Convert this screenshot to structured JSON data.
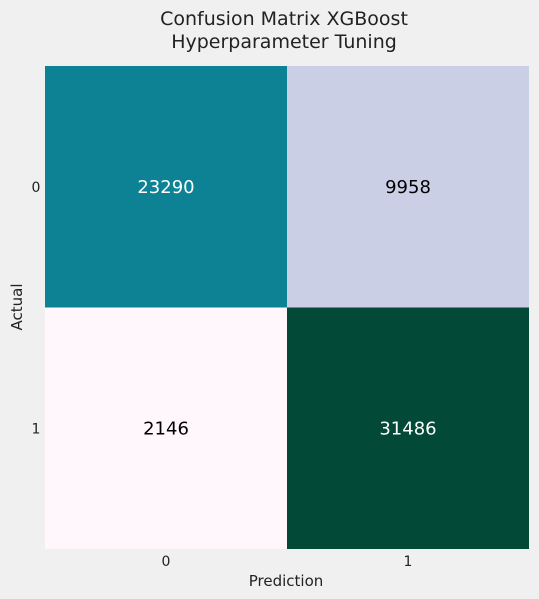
{
  "chart_data": {
    "type": "heatmap",
    "title": "Confusion Matrix XGBoost\nHyperparameter Tuning",
    "xlabel": "Prediction",
    "ylabel": "Actual",
    "x_categories": [
      "0",
      "1"
    ],
    "y_categories": [
      "0",
      "1"
    ],
    "values": [
      [
        23290,
        9958
      ],
      [
        2146,
        31486
      ]
    ],
    "colormap": "PuBuGn",
    "cell_colors": [
      [
        "#0c8294",
        "#cacfe5"
      ],
      [
        "#fff7fb",
        "#024a37"
      ]
    ],
    "label_colors": [
      [
        "#ffffff",
        "#000000"
      ],
      [
        "#000000",
        "#ffffff"
      ]
    ],
    "colorbar": false,
    "grid": false
  }
}
